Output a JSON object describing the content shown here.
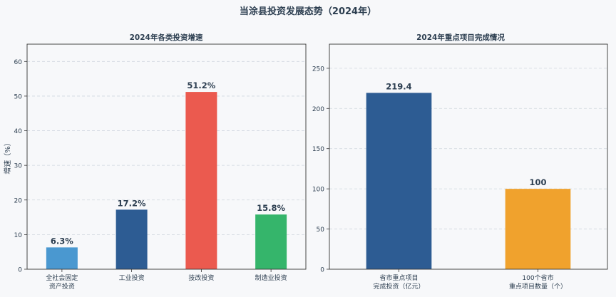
{
  "suptitle": "当涂县投资发展态势（2024年）",
  "chart_data": [
    {
      "type": "bar",
      "title": "2024年各类投资增速",
      "xlabel": "",
      "ylabel": "增速（%）",
      "categories": [
        "全社会固定\n资产投资",
        "工业投资",
        "技改投资",
        "制造业投资"
      ],
      "values": [
        6.3,
        17.2,
        51.2,
        15.8
      ],
      "value_labels": [
        "6.3%",
        "17.2%",
        "51.2%",
        "15.8%"
      ],
      "colors": [
        "#4a98d0",
        "#2d5c93",
        "#eb5a4f",
        "#35b56b"
      ],
      "ylim": [
        0,
        65
      ],
      "yticks": [
        0,
        10,
        20,
        30,
        40,
        50,
        60
      ],
      "grid": "y-dashed"
    },
    {
      "type": "bar",
      "title": "2024年重点项目完成情况",
      "xlabel": "",
      "ylabel": "",
      "categories": [
        "省市重点项目\n完成投资（亿元）",
        "100个省市\n重点项目数量（个）"
      ],
      "values": [
        219.4,
        100
      ],
      "value_labels": [
        "219.4",
        "100"
      ],
      "colors": [
        "#2d5c93",
        "#f0a22d"
      ],
      "ylim": [
        0,
        280
      ],
      "yticks": [
        0,
        50,
        100,
        150,
        200,
        250
      ],
      "grid": "y-dashed"
    }
  ]
}
